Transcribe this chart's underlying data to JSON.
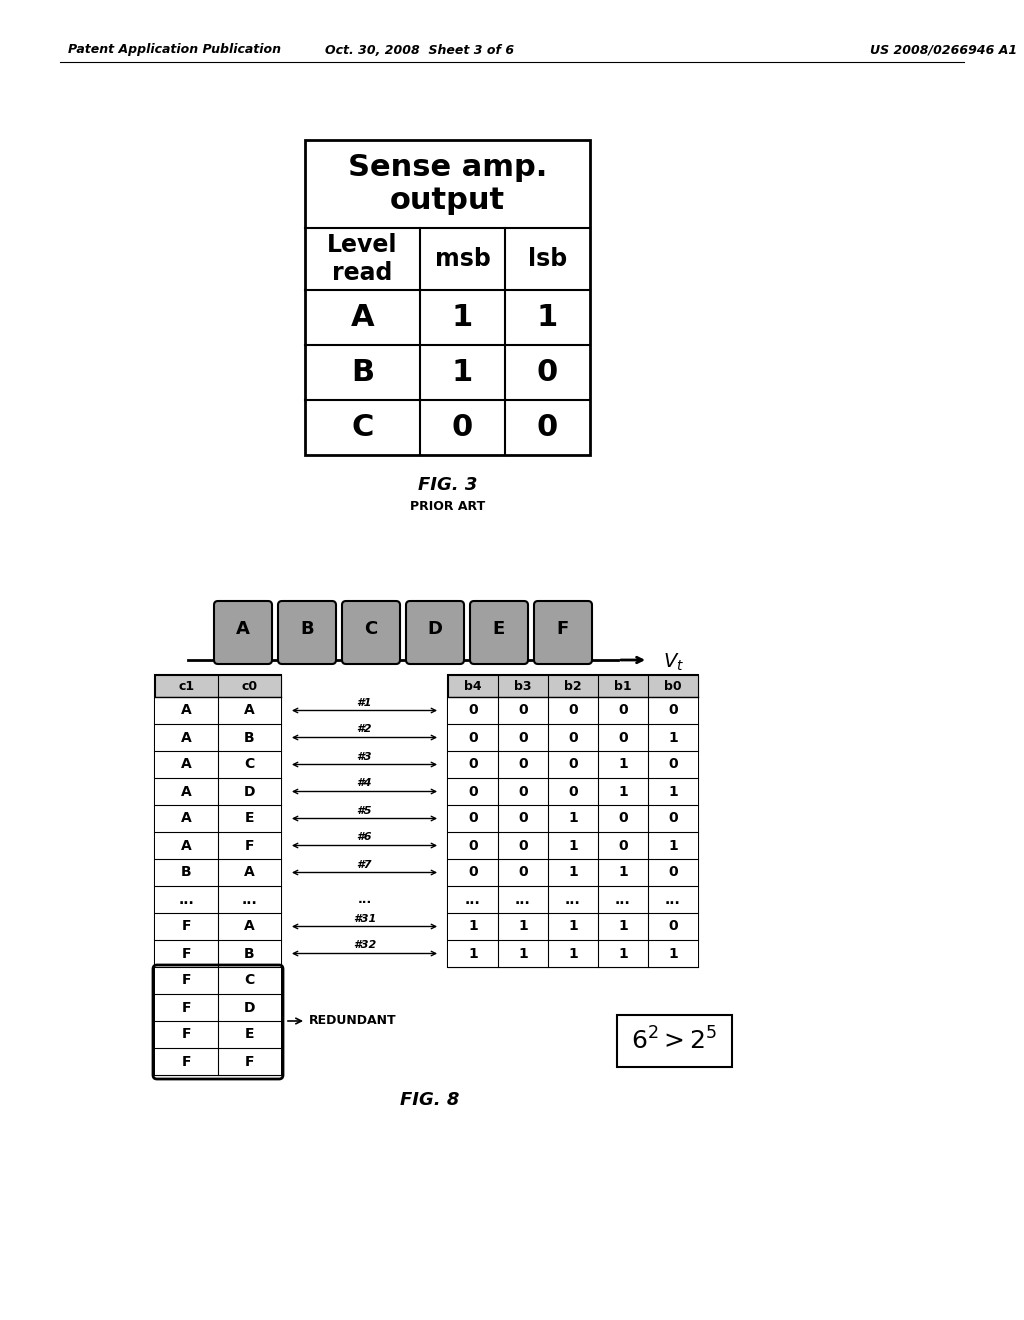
{
  "bg_color": "#ffffff",
  "fig3_rows": [
    [
      "A",
      "1",
      "1"
    ],
    [
      "B",
      "1",
      "0"
    ],
    [
      "C",
      "0",
      "0"
    ]
  ],
  "fig8_levels": [
    "A",
    "B",
    "C",
    "D",
    "E",
    "F"
  ],
  "fig8_left_rows": [
    [
      "A",
      "A"
    ],
    [
      "A",
      "B"
    ],
    [
      "A",
      "C"
    ],
    [
      "A",
      "D"
    ],
    [
      "A",
      "E"
    ],
    [
      "A",
      "F"
    ],
    [
      "B",
      "A"
    ],
    [
      "...",
      "..."
    ],
    [
      "F",
      "A"
    ],
    [
      "F",
      "B"
    ],
    [
      "F",
      "C"
    ],
    [
      "F",
      "D"
    ],
    [
      "F",
      "E"
    ],
    [
      "F",
      "F"
    ]
  ],
  "fig8_right_rows": [
    [
      "0",
      "0",
      "0",
      "0",
      "0"
    ],
    [
      "0",
      "0",
      "0",
      "0",
      "1"
    ],
    [
      "0",
      "0",
      "0",
      "1",
      "0"
    ],
    [
      "0",
      "0",
      "0",
      "1",
      "1"
    ],
    [
      "0",
      "0",
      "1",
      "0",
      "0"
    ],
    [
      "0",
      "0",
      "1",
      "0",
      "1"
    ],
    [
      "0",
      "0",
      "1",
      "1",
      "0"
    ],
    [
      "...",
      "...",
      "...",
      "...",
      "..."
    ],
    [
      "1",
      "1",
      "1",
      "1",
      "0"
    ],
    [
      "1",
      "1",
      "1",
      "1",
      "1"
    ]
  ],
  "fig8_right_col_headers": [
    "b4",
    "b3",
    "b2",
    "b1",
    "b0"
  ],
  "fig8_arrows": [
    "#1",
    "#2",
    "#3",
    "#4",
    "#5",
    "#6",
    "#7",
    "...",
    "#31",
    "#32"
  ],
  "header_left": "Patent Application Publication",
  "header_mid": "Oct. 30, 2008  Sheet 3 of 6",
  "header_right": "US 2008/0266946 A1",
  "gray_color": "#c8c8c8",
  "tomb_gray": "#a0a0a0"
}
